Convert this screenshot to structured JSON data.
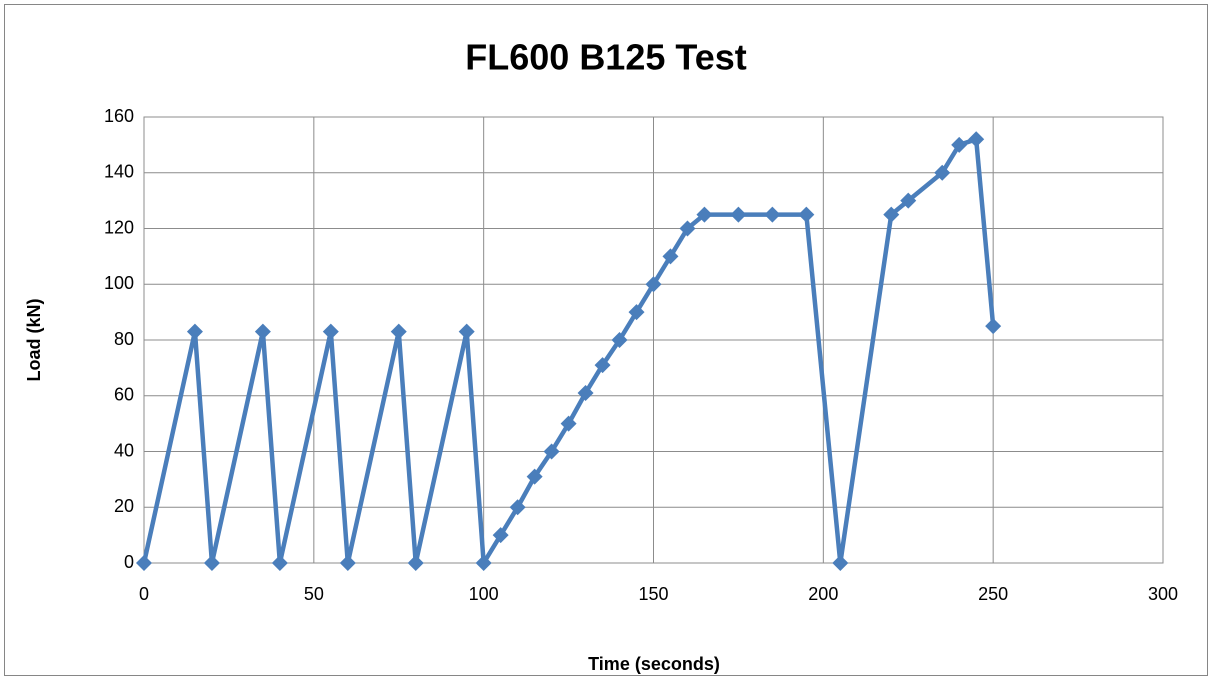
{
  "chart_data": {
    "type": "line",
    "title": "FL600 B125 Test",
    "xlabel": "Time (seconds)",
    "ylabel": "Load (kN)",
    "x": [
      0,
      15,
      20,
      35,
      40,
      55,
      60,
      75,
      80,
      95,
      100,
      105,
      110,
      115,
      120,
      125,
      130,
      135,
      140,
      145,
      150,
      155,
      160,
      165,
      175,
      185,
      195,
      205,
      220,
      225,
      235,
      240,
      245,
      250
    ],
    "values": [
      0,
      83,
      0,
      83,
      0,
      83,
      0,
      83,
      0,
      83,
      0,
      10,
      20,
      31,
      40,
      50,
      61,
      71,
      80,
      90,
      100,
      110,
      120,
      125,
      125,
      125,
      125,
      0,
      125,
      130,
      140,
      150,
      152,
      85
    ],
    "color": "#4a7ebb",
    "xlim": [
      0,
      300
    ],
    "xticks": [
      0,
      50,
      100,
      150,
      200,
      250,
      300
    ],
    "ylim": [
      0,
      160
    ],
    "yticks": [
      0,
      20,
      40,
      60,
      80,
      100,
      120,
      140,
      160
    ],
    "grid": true
  }
}
